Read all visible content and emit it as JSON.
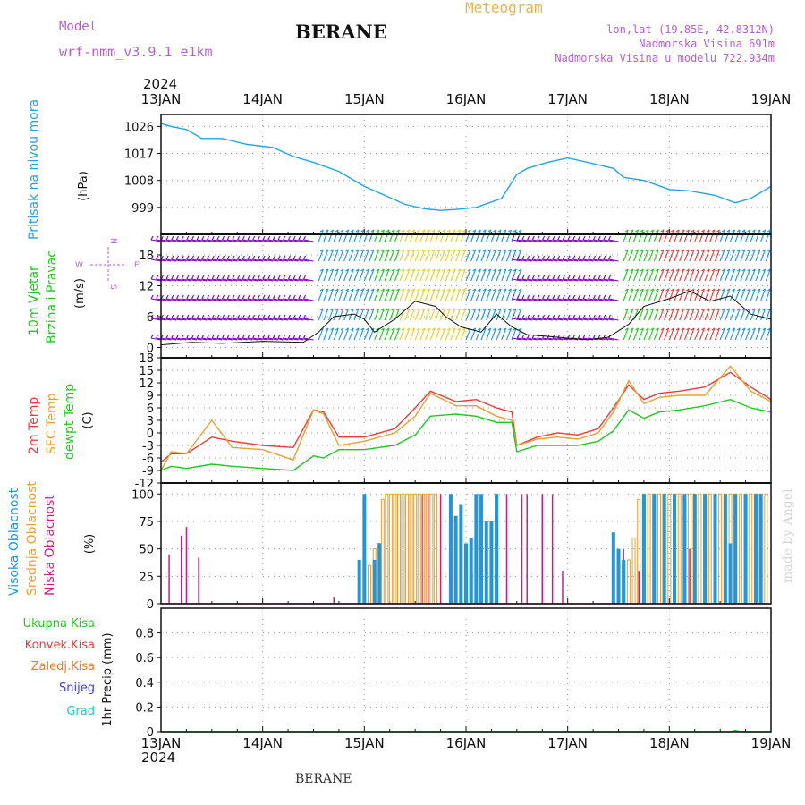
{
  "header": {
    "model_label": "Model",
    "model_name": "wrf-nmm_v3.9.1 e1km",
    "station": "BERANE",
    "product": "Meteogram",
    "coords": "lon,lat (19.85E, 42.8312N)",
    "elevation": "Nadmorska Visina 691m",
    "model_elevation": "Nadmorska Visina u modelu 722.934m",
    "footer_station": "BERANE",
    "watermark": "made by Angel"
  },
  "time_axis": {
    "year": "2024",
    "labels": [
      "13JAN",
      "14JAN",
      "15JAN",
      "16JAN",
      "17JAN",
      "18JAN",
      "19JAN"
    ]
  },
  "colors": {
    "pressure": "#1fa5e8",
    "temp2m": "#e83c3c",
    "sfc_temp": "#e8a030",
    "dewpoint": "#1ec81e",
    "wind_speed": "#111111",
    "high_cloud": "#1e96e0",
    "mid_cloud": "#e8a030",
    "low_cloud": "#c81e8c",
    "title_purple": "#b35fd6",
    "meteogram_orange": "#e8b450",
    "precip_total": "#1ec81e",
    "precip_conv": "#e83c3c",
    "precip_frz": "#f07a20",
    "precip_snow": "#3c3ce8",
    "precip_hail": "#20c8c8"
  },
  "chart_data": [
    {
      "type": "line",
      "title": "Pritisak na nivou mora",
      "ylabel": "(hPa)",
      "yticks": [
        999,
        1008,
        1017,
        1026
      ],
      "ylim": [
        990,
        1030
      ],
      "grid": true,
      "x_days": [
        0,
        0.1,
        0.25,
        0.4,
        0.6,
        0.85,
        1.1,
        1.3,
        1.5,
        1.75,
        2.0,
        2.2,
        2.4,
        2.6,
        2.75,
        2.9,
        3.1,
        3.35,
        3.5,
        3.6,
        3.8,
        4.0,
        4.2,
        4.45,
        4.55,
        4.75,
        5.0,
        5.2,
        5.45,
        5.65,
        5.8,
        6.0
      ],
      "series": [
        {
          "key": "pressure",
          "values": [
            1027,
            1026,
            1025,
            1022,
            1022,
            1020,
            1019,
            1016,
            1014,
            1011,
            1006,
            1003,
            1000,
            998.5,
            998,
            998.3,
            999,
            1002,
            1010,
            1012,
            1014,
            1015.5,
            1014,
            1012,
            1009,
            1008,
            1005,
            1004.5,
            1003,
            1000.5,
            1002,
            1006
          ]
        }
      ]
    },
    {
      "type": "line",
      "title": "10m Vjetar Brzina i Pravac",
      "ylabel": "(m/s)",
      "yticks": [
        0,
        6,
        12,
        18
      ],
      "ylim": [
        -2,
        22
      ],
      "grid": true,
      "x_days": [
        0,
        0.3,
        0.6,
        1.0,
        1.4,
        1.55,
        1.7,
        1.9,
        2.0,
        2.1,
        2.3,
        2.5,
        2.7,
        2.8,
        2.95,
        3.15,
        3.3,
        3.45,
        3.6,
        3.9,
        4.2,
        4.4,
        4.6,
        4.75,
        5.0,
        5.2,
        5.4,
        5.6,
        5.8,
        6.0
      ],
      "series": [
        {
          "key": "wind_speed",
          "values": [
            0.5,
            1.0,
            0.8,
            1.2,
            1.0,
            3.0,
            6.0,
            6.5,
            5.5,
            3.0,
            5.5,
            9.0,
            8.0,
            6.0,
            4.0,
            3.0,
            6.5,
            4.0,
            2.5,
            2.0,
            1.5,
            2.0,
            4.5,
            8.0,
            9.5,
            11.0,
            9.0,
            10.0,
            6.5,
            5.5
          ]
        }
      ],
      "barbs": {
        "legend_compass": [
          "N",
          "E",
          "S",
          "W"
        ],
        "colors_by_segment": [
          "#8000c8",
          "#1e96e0",
          "#1ec81e",
          "#e8d020",
          "#1e96e0",
          "#8000c8",
          "#1ec81e",
          "#e83c3c",
          "#1e96e0"
        ],
        "segment_starts_days": [
          0,
          1.55,
          2.1,
          2.35,
          3.0,
          3.55,
          4.55,
          4.9,
          5.5
        ]
      }
    },
    {
      "type": "line",
      "title": "2m Temp / SFC Temp / dewpt Temp",
      "ylabel": "(C)",
      "yticks": [
        -12,
        -9,
        -6,
        -3,
        0,
        3,
        6,
        9,
        12,
        15,
        18
      ],
      "ylim": [
        -12,
        18
      ],
      "grid": true,
      "x_days": [
        0,
        0.1,
        0.25,
        0.5,
        0.7,
        1.0,
        1.3,
        1.5,
        1.6,
        1.75,
        2.0,
        2.3,
        2.5,
        2.65,
        2.9,
        3.1,
        3.3,
        3.45,
        3.5,
        3.7,
        3.9,
        4.1,
        4.3,
        4.45,
        4.6,
        4.75,
        4.9,
        5.1,
        5.35,
        5.6,
        5.8,
        6.0
      ],
      "series": [
        {
          "key": "temp2m",
          "name": "2m Temp",
          "values": [
            -7,
            -5,
            -5,
            -1,
            -2,
            -3,
            -3.5,
            5.5,
            5,
            -1,
            -1,
            1,
            6,
            10,
            7.5,
            8,
            6,
            5,
            -3,
            -1,
            0,
            -0.5,
            1,
            6,
            11.5,
            8,
            9.5,
            10,
            11,
            14.5,
            11,
            8
          ]
        },
        {
          "key": "sfc_temp",
          "name": "SFC Temp",
          "values": [
            -9,
            -4.5,
            -5,
            3,
            -3.5,
            -4,
            -6.5,
            5.5,
            4.5,
            -3,
            -2,
            0,
            4,
            9.5,
            6.5,
            6.5,
            4,
            3,
            -3,
            -1.5,
            -1,
            -1.5,
            0,
            5,
            12.5,
            7,
            8.5,
            9,
            9,
            16,
            10,
            7.5
          ]
        },
        {
          "key": "dewpoint",
          "name": "dewpt Temp",
          "values": [
            -9,
            -8,
            -8.5,
            -7.5,
            -8,
            -8.5,
            -9,
            -5.5,
            -6,
            -4,
            -4,
            -3,
            -0.5,
            4,
            4.5,
            4,
            2.5,
            2.5,
            -4.5,
            -3,
            -3,
            -3,
            -2,
            0.5,
            5.5,
            3.5,
            5,
            5.5,
            6.5,
            8,
            6,
            5
          ]
        }
      ]
    },
    {
      "type": "bar",
      "title": "Visoka Oblacnost / Srednja Oblacnost / Niska Oblacnost",
      "ylabel": "(%)",
      "yticks": [
        0,
        25,
        50,
        75,
        100
      ],
      "ylim": [
        0,
        100
      ],
      "grid": true,
      "series": [
        {
          "key": "low_cloud",
          "name": "Niska Oblacnost",
          "bars": [
            [
              0.08,
              45
            ],
            [
              0.2,
              62
            ],
            [
              0.25,
              70
            ],
            [
              0.37,
              42
            ],
            [
              1.7,
              6
            ],
            [
              2.57,
              100
            ],
            [
              2.63,
              100
            ],
            [
              2.75,
              100
            ],
            [
              3.4,
              100
            ],
            [
              3.55,
              100
            ],
            [
              3.6,
              100
            ],
            [
              3.75,
              100
            ],
            [
              3.85,
              100
            ],
            [
              3.95,
              30
            ],
            [
              4.55,
              50
            ],
            [
              4.7,
              30
            ],
            [
              5.2,
              50
            ]
          ]
        },
        {
          "key": "mid_cloud",
          "name": "Srednja Oblacnost",
          "bars": [
            [
              2.05,
              35
            ],
            [
              2.1,
              50
            ],
            [
              2.14,
              55
            ],
            [
              2.18,
              95
            ],
            [
              2.22,
              100
            ],
            [
              2.26,
              100
            ],
            [
              2.3,
              100
            ],
            [
              2.34,
              100
            ],
            [
              2.38,
              100
            ],
            [
              2.42,
              100
            ],
            [
              2.46,
              100
            ],
            [
              2.5,
              100
            ],
            [
              2.54,
              100
            ],
            [
              2.58,
              100
            ],
            [
              2.62,
              100
            ],
            [
              2.66,
              100
            ],
            [
              2.7,
              100
            ],
            [
              3.05,
              28
            ],
            [
              3.1,
              60
            ],
            [
              3.3,
              100
            ],
            [
              4.55,
              35
            ],
            [
              4.6,
              40
            ],
            [
              4.65,
              60
            ],
            [
              4.7,
              95
            ],
            [
              4.75,
              100
            ],
            [
              4.8,
              100
            ],
            [
              4.85,
              100
            ],
            [
              4.9,
              100
            ],
            [
              4.95,
              100
            ],
            [
              5.0,
              100
            ],
            [
              5.05,
              100
            ],
            [
              5.1,
              100
            ],
            [
              5.15,
              100
            ],
            [
              5.2,
              100
            ],
            [
              5.25,
              100
            ],
            [
              5.3,
              100
            ],
            [
              5.35,
              100
            ],
            [
              5.4,
              100
            ],
            [
              5.45,
              100
            ],
            [
              5.5,
              100
            ],
            [
              5.55,
              100
            ],
            [
              5.6,
              100
            ],
            [
              5.65,
              100
            ],
            [
              5.7,
              100
            ],
            [
              5.75,
              100
            ],
            [
              5.8,
              100
            ],
            [
              5.85,
              100
            ],
            [
              5.9,
              100
            ],
            [
              5.95,
              100
            ]
          ]
        },
        {
          "key": "high_cloud",
          "name": "Visoka Oblacnost",
          "bars": [
            [
              1.95,
              40
            ],
            [
              2.0,
              100
            ],
            [
              2.1,
              40
            ],
            [
              2.15,
              55
            ],
            [
              2.85,
              100
            ],
            [
              2.9,
              80
            ],
            [
              2.95,
              90
            ],
            [
              3.0,
              55
            ],
            [
              3.05,
              60
            ],
            [
              3.1,
              100
            ],
            [
              3.15,
              100
            ],
            [
              3.2,
              75
            ],
            [
              3.25,
              75
            ],
            [
              3.3,
              100
            ],
            [
              4.45,
              65
            ],
            [
              4.5,
              50
            ],
            [
              4.55,
              40
            ],
            [
              4.75,
              100
            ],
            [
              4.85,
              100
            ],
            [
              4.95,
              100
            ],
            [
              5.05,
              100
            ],
            [
              5.15,
              100
            ],
            [
              5.25,
              100
            ],
            [
              5.35,
              100
            ],
            [
              5.45,
              100
            ],
            [
              5.55,
              100
            ],
            [
              5.6,
              55
            ],
            [
              5.65,
              100
            ],
            [
              5.75,
              100
            ],
            [
              5.85,
              100
            ],
            [
              5.9,
              100
            ]
          ]
        }
      ]
    },
    {
      "type": "line",
      "title": "1hr Precip",
      "ylabel": "1hr Precip (mm)",
      "yticks": [
        0,
        0.2,
        0.4,
        0.6,
        0.8
      ],
      "ylim": [
        0,
        1.0
      ],
      "grid": true,
      "legend": [
        "Ukupna Kisa",
        "Konvek.Kisa",
        "Zaledj.Kisa",
        "Snijeg",
        "Grad"
      ],
      "x_days": [
        0,
        5.6,
        5.65,
        5.7,
        6.0
      ],
      "series": [
        {
          "key": "precip_total",
          "name": "Ukupna Kisa",
          "values": [
            0,
            0,
            0.01,
            0,
            0
          ]
        }
      ]
    }
  ]
}
